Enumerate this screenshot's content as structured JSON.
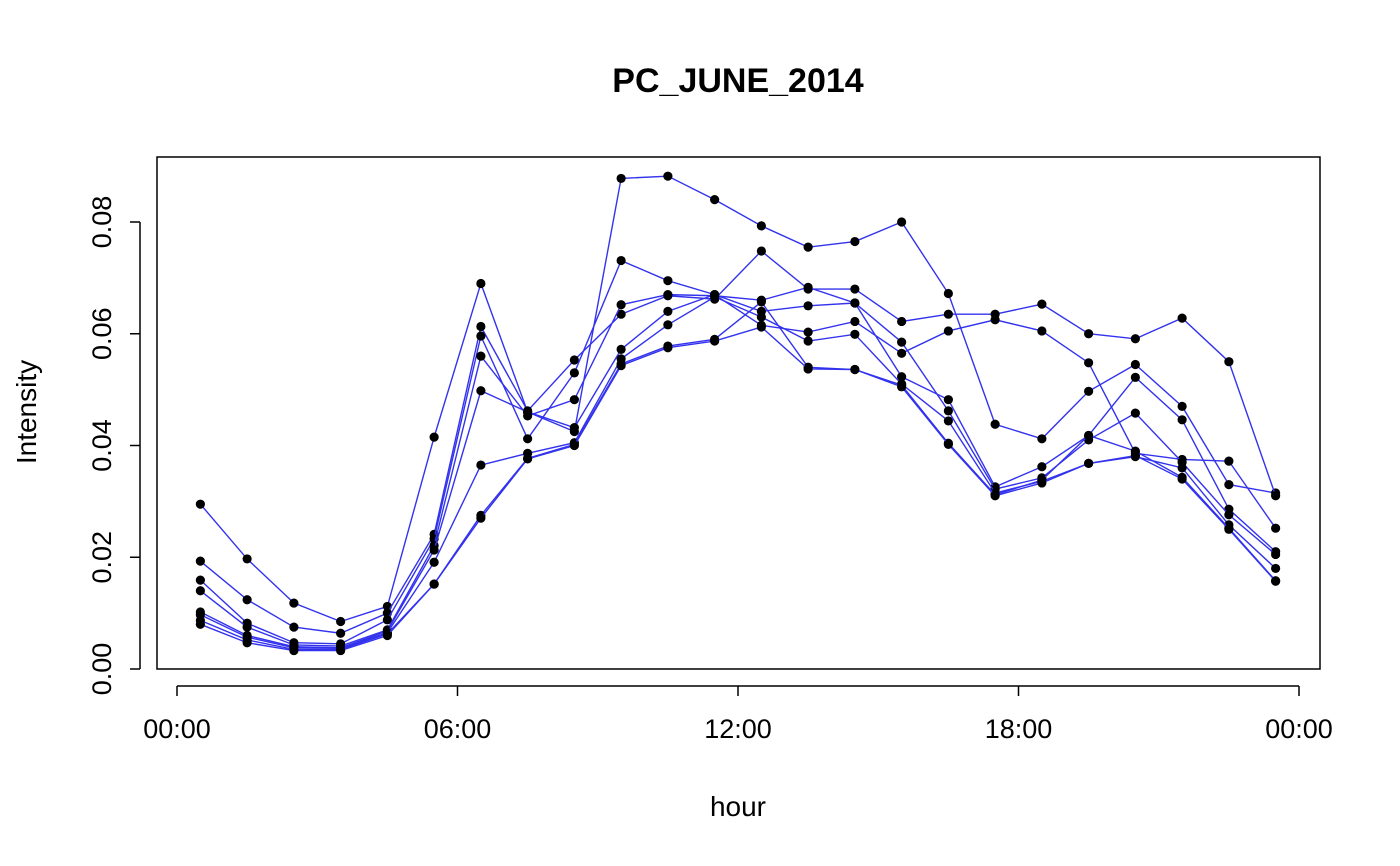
{
  "chart_data": {
    "type": "line",
    "title": "PC_JUNE_2014",
    "xlabel": "hour",
    "ylabel": "Intensity",
    "xlim": [
      0,
      24
    ],
    "ylim": [
      0.0,
      0.09
    ],
    "x_ticks": [
      {
        "value": 0,
        "label": "00:00"
      },
      {
        "value": 6,
        "label": "06:00"
      },
      {
        "value": 12,
        "label": "12:00"
      },
      {
        "value": 18,
        "label": "18:00"
      },
      {
        "value": 24,
        "label": "00:00"
      }
    ],
    "y_ticks": [
      {
        "value": 0.0,
        "label": "0.00"
      },
      {
        "value": 0.02,
        "label": "0.02"
      },
      {
        "value": 0.04,
        "label": "0.04"
      },
      {
        "value": 0.06,
        "label": "0.06"
      },
      {
        "value": 0.08,
        "label": "0.08"
      }
    ],
    "grid": false,
    "legend": "none",
    "line_color": "#3333ee",
    "point_color": "#000000",
    "x": [
      0.5,
      1.5,
      2.5,
      3.5,
      4.5,
      5.5,
      6.5,
      7.5,
      8.5,
      9.5,
      10.5,
      11.5,
      12.5,
      13.5,
      14.5,
      15.5,
      16.5,
      17.5,
      18.5,
      19.5,
      20.5,
      21.5,
      22.5,
      23.5
    ],
    "series": [
      {
        "values": [
          0.0295,
          0.0197,
          0.0118,
          0.0085,
          0.0112,
          0.0415,
          0.069,
          0.046,
          0.0425,
          0.0878,
          0.0882,
          0.084,
          0.0793,
          0.0755,
          0.0765,
          0.08,
          0.0672,
          0.0438,
          0.0412,
          0.0497,
          0.0545,
          0.047,
          0.033,
          0.0315
        ]
      },
      {
        "values": [
          0.0193,
          0.0124,
          0.0075,
          0.0064,
          0.01,
          0.0241,
          0.0613,
          0.0462,
          0.0553,
          0.0635,
          0.0668,
          0.0662,
          0.0748,
          0.068,
          0.068,
          0.0622,
          0.0635,
          0.0635,
          0.0653,
          0.06,
          0.0591,
          0.0628,
          0.055,
          0.031
        ]
      },
      {
        "values": [
          0.0159,
          0.0082,
          0.0047,
          0.0045,
          0.0088,
          0.0233,
          0.0596,
          0.0412,
          0.053,
          0.0731,
          0.0695,
          0.067,
          0.0615,
          0.0603,
          0.0622,
          0.0565,
          0.0605,
          0.0625,
          0.0605,
          0.0548,
          0.0386,
          0.0375,
          0.0372,
          0.0252
        ]
      },
      {
        "values": [
          0.014,
          0.0075,
          0.0043,
          0.0041,
          0.007,
          0.0221,
          0.056,
          0.0453,
          0.0482,
          0.0652,
          0.067,
          0.0668,
          0.066,
          0.0683,
          0.0655,
          0.0523,
          0.0482,
          0.0326,
          0.0362,
          0.0418,
          0.0522,
          0.0446,
          0.0286,
          0.021
        ]
      },
      {
        "values": [
          0.0102,
          0.006,
          0.004,
          0.0038,
          0.0068,
          0.0213,
          0.0498,
          0.046,
          0.0432,
          0.0572,
          0.064,
          0.067,
          0.064,
          0.065,
          0.0655,
          0.0585,
          0.0462,
          0.0322,
          0.0342,
          0.041,
          0.0458,
          0.037,
          0.0276,
          0.0205
        ]
      },
      {
        "values": [
          0.0097,
          0.0057,
          0.0038,
          0.0037,
          0.0065,
          0.0191,
          0.0365,
          0.0386,
          0.0405,
          0.0555,
          0.0616,
          0.0666,
          0.063,
          0.0587,
          0.0599,
          0.051,
          0.0444,
          0.0315,
          0.0336,
          0.0368,
          0.038,
          0.036,
          0.0258,
          0.018
        ]
      },
      {
        "values": [
          0.0087,
          0.0052,
          0.0035,
          0.0035,
          0.0063,
          0.0152,
          0.0275,
          0.0377,
          0.0402,
          0.0546,
          0.0578,
          0.059,
          0.0657,
          0.054,
          0.0536,
          0.0508,
          0.0404,
          0.0312,
          0.0338,
          0.0418,
          0.039,
          0.0343,
          0.0252,
          0.0158
        ]
      },
      {
        "values": [
          0.008,
          0.0047,
          0.0033,
          0.0033,
          0.006,
          0.0152,
          0.027,
          0.0376,
          0.04,
          0.0543,
          0.0575,
          0.0587,
          0.0612,
          0.0537,
          0.0536,
          0.0505,
          0.0402,
          0.031,
          0.0333,
          0.0368,
          0.0382,
          0.034,
          0.025,
          0.0157
        ]
      }
    ]
  }
}
